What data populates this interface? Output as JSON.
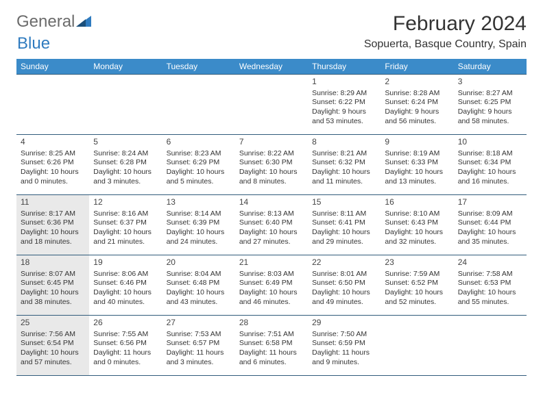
{
  "brand": {
    "word1": "General",
    "word2": "Blue"
  },
  "title": "February 2024",
  "location": "Sopuerta, Basque Country, Spain",
  "style": {
    "header_bg": "#3b8bc9",
    "header_fg": "#ffffff",
    "border_color": "#2f5a7a",
    "shade_bg": "#e9e9e9",
    "page_bg": "#ffffff",
    "text_color": "#333333",
    "title_fontsize": 30,
    "location_fontsize": 16,
    "dayhead_fontsize": 12,
    "cell_fontsize": 10.5
  },
  "day_headers": [
    "Sunday",
    "Monday",
    "Tuesday",
    "Wednesday",
    "Thursday",
    "Friday",
    "Saturday"
  ],
  "weeks": [
    [
      {
        "blank": true
      },
      {
        "blank": true
      },
      {
        "blank": true
      },
      {
        "blank": true
      },
      {
        "day": "1",
        "sunrise": "8:29 AM",
        "sunset": "6:22 PM",
        "daylight": "9 hours and 53 minutes."
      },
      {
        "day": "2",
        "sunrise": "8:28 AM",
        "sunset": "6:24 PM",
        "daylight": "9 hours and 56 minutes."
      },
      {
        "day": "3",
        "sunrise": "8:27 AM",
        "sunset": "6:25 PM",
        "daylight": "9 hours and 58 minutes."
      }
    ],
    [
      {
        "day": "4",
        "sunrise": "8:25 AM",
        "sunset": "6:26 PM",
        "daylight": "10 hours and 0 minutes."
      },
      {
        "day": "5",
        "sunrise": "8:24 AM",
        "sunset": "6:28 PM",
        "daylight": "10 hours and 3 minutes."
      },
      {
        "day": "6",
        "sunrise": "8:23 AM",
        "sunset": "6:29 PM",
        "daylight": "10 hours and 5 minutes."
      },
      {
        "day": "7",
        "sunrise": "8:22 AM",
        "sunset": "6:30 PM",
        "daylight": "10 hours and 8 minutes."
      },
      {
        "day": "8",
        "sunrise": "8:21 AM",
        "sunset": "6:32 PM",
        "daylight": "10 hours and 11 minutes."
      },
      {
        "day": "9",
        "sunrise": "8:19 AM",
        "sunset": "6:33 PM",
        "daylight": "10 hours and 13 minutes."
      },
      {
        "day": "10",
        "sunrise": "8:18 AM",
        "sunset": "6:34 PM",
        "daylight": "10 hours and 16 minutes."
      }
    ],
    [
      {
        "day": "11",
        "shade": true,
        "sunrise": "8:17 AM",
        "sunset": "6:36 PM",
        "daylight": "10 hours and 18 minutes."
      },
      {
        "day": "12",
        "sunrise": "8:16 AM",
        "sunset": "6:37 PM",
        "daylight": "10 hours and 21 minutes."
      },
      {
        "day": "13",
        "sunrise": "8:14 AM",
        "sunset": "6:39 PM",
        "daylight": "10 hours and 24 minutes."
      },
      {
        "day": "14",
        "sunrise": "8:13 AM",
        "sunset": "6:40 PM",
        "daylight": "10 hours and 27 minutes."
      },
      {
        "day": "15",
        "sunrise": "8:11 AM",
        "sunset": "6:41 PM",
        "daylight": "10 hours and 29 minutes."
      },
      {
        "day": "16",
        "sunrise": "8:10 AM",
        "sunset": "6:43 PM",
        "daylight": "10 hours and 32 minutes."
      },
      {
        "day": "17",
        "sunrise": "8:09 AM",
        "sunset": "6:44 PM",
        "daylight": "10 hours and 35 minutes."
      }
    ],
    [
      {
        "day": "18",
        "shade": true,
        "sunrise": "8:07 AM",
        "sunset": "6:45 PM",
        "daylight": "10 hours and 38 minutes."
      },
      {
        "day": "19",
        "sunrise": "8:06 AM",
        "sunset": "6:46 PM",
        "daylight": "10 hours and 40 minutes."
      },
      {
        "day": "20",
        "sunrise": "8:04 AM",
        "sunset": "6:48 PM",
        "daylight": "10 hours and 43 minutes."
      },
      {
        "day": "21",
        "sunrise": "8:03 AM",
        "sunset": "6:49 PM",
        "daylight": "10 hours and 46 minutes."
      },
      {
        "day": "22",
        "sunrise": "8:01 AM",
        "sunset": "6:50 PM",
        "daylight": "10 hours and 49 minutes."
      },
      {
        "day": "23",
        "sunrise": "7:59 AM",
        "sunset": "6:52 PM",
        "daylight": "10 hours and 52 minutes."
      },
      {
        "day": "24",
        "sunrise": "7:58 AM",
        "sunset": "6:53 PM",
        "daylight": "10 hours and 55 minutes."
      }
    ],
    [
      {
        "day": "25",
        "shade": true,
        "sunrise": "7:56 AM",
        "sunset": "6:54 PM",
        "daylight": "10 hours and 57 minutes."
      },
      {
        "day": "26",
        "sunrise": "7:55 AM",
        "sunset": "6:56 PM",
        "daylight": "11 hours and 0 minutes."
      },
      {
        "day": "27",
        "sunrise": "7:53 AM",
        "sunset": "6:57 PM",
        "daylight": "11 hours and 3 minutes."
      },
      {
        "day": "28",
        "sunrise": "7:51 AM",
        "sunset": "6:58 PM",
        "daylight": "11 hours and 6 minutes."
      },
      {
        "day": "29",
        "sunrise": "7:50 AM",
        "sunset": "6:59 PM",
        "daylight": "11 hours and 9 minutes."
      },
      {
        "blank": true
      },
      {
        "blank": true
      }
    ]
  ],
  "labels": {
    "sunrise": "Sunrise:",
    "sunset": "Sunset:",
    "daylight": "Daylight:"
  }
}
